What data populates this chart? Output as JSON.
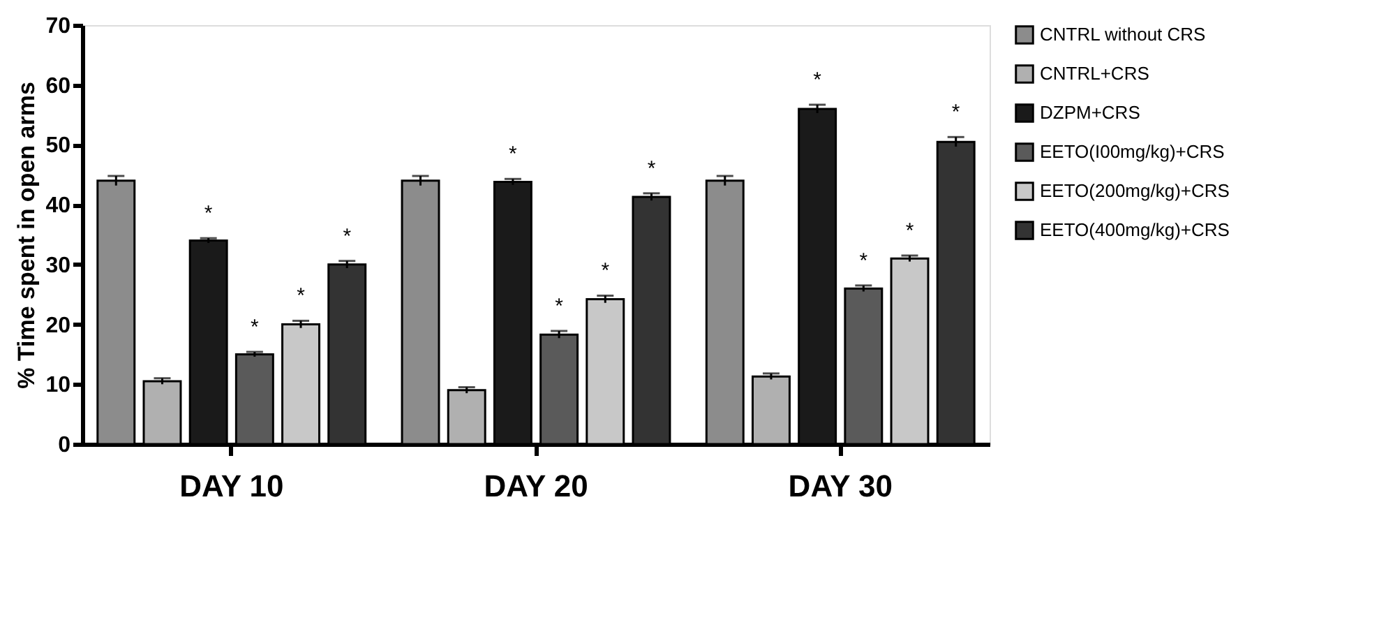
{
  "chart_data": {
    "type": "bar",
    "ylabel": "% Time spent in open arms",
    "categories": [
      "DAY 10",
      "DAY 20",
      "DAY 30"
    ],
    "ylim": [
      0,
      70
    ],
    "yticks": [
      0,
      10,
      20,
      30,
      40,
      50,
      60,
      70
    ],
    "grid": false,
    "legend": "top right",
    "series": [
      {
        "name": "CNTRL without CRS",
        "color": "#8c8c8c",
        "values": [
          44,
          44,
          44
        ],
        "errors": [
          0.8,
          0.8,
          0.8
        ],
        "value_labels": [
          null,
          null,
          null
        ]
      },
      {
        "name": "CNTRL+CRS",
        "color": "#b0b0b0",
        "values": [
          10.5,
          9,
          11.3
        ],
        "errors": [
          0.5,
          0.5,
          0.5
        ],
        "value_labels": [
          null,
          null,
          null
        ]
      },
      {
        "name": "DZPM+CRS",
        "color": "#1a1a1a",
        "values": [
          34,
          43.8,
          56
        ],
        "errors": [
          0.4,
          0.5,
          0.7
        ],
        "value_labels": [
          "*",
          "*",
          "*"
        ]
      },
      {
        "name": "EETO(I00mg/kg)+CRS",
        "color": "#5a5a5a",
        "values": [
          15,
          18.3,
          26
        ],
        "errors": [
          0.4,
          0.6,
          0.5
        ],
        "value_labels": [
          "*",
          "*",
          "*"
        ]
      },
      {
        "name": "EETO(200mg/kg)+CRS",
        "color": "#c8c8c8",
        "values": [
          20,
          24.2,
          31
        ],
        "errors": [
          0.6,
          0.6,
          0.5
        ],
        "value_labels": [
          "*",
          "*",
          "*"
        ]
      },
      {
        "name": "EETO(400mg/kg)+CRS",
        "color": "#333333",
        "values": [
          30,
          41.3,
          50.5
        ],
        "errors": [
          0.6,
          0.6,
          0.8
        ],
        "value_labels": [
          "*",
          "*",
          "*"
        ]
      }
    ]
  }
}
